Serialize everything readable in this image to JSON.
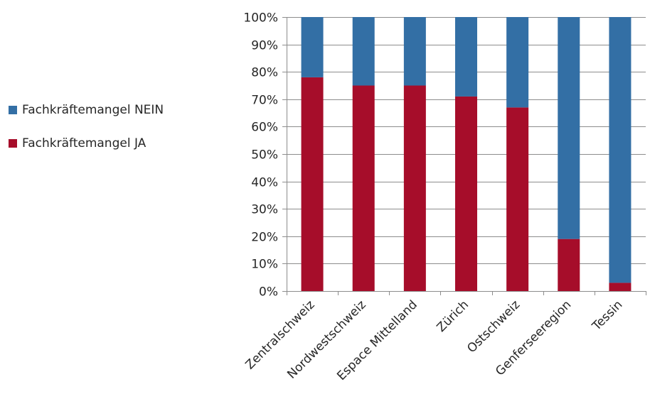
{
  "colors": {
    "nein": "#336FA5",
    "ja": "#A60D2A",
    "grid": "#8c8c8c",
    "axis": "#8c8c8c"
  },
  "legend": [
    {
      "label": "Fachkräftemangel NEIN",
      "color": "#336FA5"
    },
    {
      "label": "Fachkräftemangel JA",
      "color": "#A60D2A"
    }
  ],
  "chart_data": {
    "type": "bar",
    "stacked": true,
    "percent": true,
    "categories": [
      "Zentralschweiz",
      "Nordwestschweiz",
      "Espace Mittelland",
      "Zürich",
      "Ostschweiz",
      "Genferseeregion",
      "Tessin"
    ],
    "series": [
      {
        "name": "Fachkräftemangel JA",
        "values": [
          78,
          75,
          75,
          71,
          67,
          19,
          3
        ]
      },
      {
        "name": "Fachkräftemangel NEIN",
        "values": [
          22,
          25,
          25,
          29,
          33,
          81,
          97
        ]
      }
    ],
    "y_ticks": [
      "0%",
      "10%",
      "20%",
      "30%",
      "40%",
      "50%",
      "60%",
      "70%",
      "80%",
      "90%",
      "100%"
    ],
    "ylim": [
      0,
      100
    ],
    "grid": true,
    "legend_position": "left"
  }
}
